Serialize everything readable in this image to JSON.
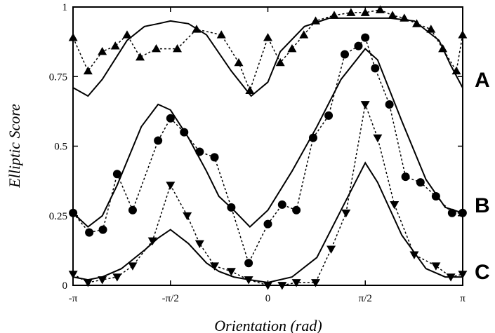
{
  "chart_data": {
    "type": "line",
    "xlabel": "Orientation (rad)",
    "ylabel": "Elliptic Score",
    "xlim": [
      -3.14159,
      3.14159
    ],
    "ylim": [
      0,
      1
    ],
    "x_ticks": [
      {
        "value": -3.14159,
        "label": "-π"
      },
      {
        "value": -1.5708,
        "label": "-π/2"
      },
      {
        "value": 0,
        "label": "0"
      },
      {
        "value": 1.5708,
        "label": "π/2"
      },
      {
        "value": 3.14159,
        "label": "π"
      }
    ],
    "y_ticks": [
      {
        "value": 0,
        "label": "0"
      },
      {
        "value": 0.25,
        "label": "0.25"
      },
      {
        "value": 0.5,
        "label": "0.5"
      },
      {
        "value": 0.75,
        "label": "0.75"
      },
      {
        "value": 1,
        "label": "1"
      }
    ],
    "panels": [
      {
        "label": "A",
        "y": 0.74
      },
      {
        "label": "B",
        "y": 0.29
      },
      {
        "label": "C",
        "y": 0.05
      }
    ],
    "grid": false,
    "legend": "none",
    "series": [
      {
        "marker": "triangle-up",
        "style": "dashed",
        "x": [
          -3.14,
          -2.9,
          -2.67,
          -2.46,
          -2.27,
          -2.06,
          -1.8,
          -1.46,
          -1.15,
          -0.75,
          -0.47,
          -0.29,
          0.0,
          0.2,
          0.39,
          0.58,
          0.77,
          1.07,
          1.34,
          1.57,
          1.81,
          2.01,
          2.2,
          2.4,
          2.63,
          2.82,
          3.04,
          3.14
        ],
        "y": [
          0.89,
          0.77,
          0.84,
          0.86,
          0.9,
          0.82,
          0.85,
          0.85,
          0.92,
          0.9,
          0.8,
          0.7,
          0.89,
          0.8,
          0.85,
          0.9,
          0.95,
          0.97,
          0.98,
          0.98,
          0.99,
          0.97,
          0.96,
          0.94,
          0.92,
          0.85,
          0.77,
          0.9
        ]
      },
      {
        "marker": "none",
        "style": "solid",
        "x": [
          -3.14,
          -2.9,
          -2.67,
          -2.27,
          -1.99,
          -1.77,
          -1.57,
          -1.28,
          -0.99,
          -0.59,
          -0.27,
          0.0,
          0.2,
          0.59,
          0.99,
          1.37,
          1.57,
          1.97,
          2.36,
          2.76,
          2.95,
          3.14
        ],
        "y": [
          0.71,
          0.68,
          0.74,
          0.88,
          0.93,
          0.94,
          0.95,
          0.94,
          0.9,
          0.77,
          0.68,
          0.73,
          0.84,
          0.93,
          0.96,
          0.96,
          0.96,
          0.96,
          0.95,
          0.88,
          0.79,
          0.71
        ]
      },
      {
        "marker": "circle",
        "style": "dashed",
        "x": [
          -3.14,
          -2.88,
          -2.66,
          -2.43,
          -2.18,
          -1.77,
          -1.57,
          -1.35,
          -1.1,
          -0.86,
          -0.59,
          -0.31,
          0.0,
          0.23,
          0.46,
          0.73,
          0.98,
          1.24,
          1.46,
          1.57,
          1.73,
          1.96,
          2.22,
          2.46,
          2.71,
          2.97,
          3.14
        ],
        "y": [
          0.26,
          0.19,
          0.2,
          0.4,
          0.27,
          0.52,
          0.6,
          0.55,
          0.48,
          0.46,
          0.28,
          0.08,
          0.22,
          0.29,
          0.27,
          0.53,
          0.61,
          0.83,
          0.86,
          0.89,
          0.78,
          0.65,
          0.39,
          0.37,
          0.32,
          0.26,
          0.26
        ]
      },
      {
        "marker": "none",
        "style": "solid",
        "x": [
          -3.14,
          -2.9,
          -2.67,
          -2.43,
          -2.04,
          -1.77,
          -1.57,
          -1.28,
          -0.99,
          -0.79,
          -0.55,
          -0.29,
          0.0,
          0.39,
          0.79,
          1.18,
          1.57,
          1.77,
          2.16,
          2.55,
          2.86,
          3.14
        ],
        "y": [
          0.26,
          0.21,
          0.25,
          0.36,
          0.57,
          0.65,
          0.63,
          0.53,
          0.41,
          0.32,
          0.27,
          0.21,
          0.27,
          0.41,
          0.57,
          0.74,
          0.85,
          0.81,
          0.59,
          0.38,
          0.28,
          0.26
        ]
      },
      {
        "marker": "triangle-down",
        "style": "dashed",
        "x": [
          -3.14,
          -2.9,
          -2.67,
          -2.43,
          -2.18,
          -1.86,
          -1.57,
          -1.3,
          -1.1,
          -0.86,
          -0.59,
          -0.31,
          0.0,
          0.23,
          0.46,
          0.77,
          1.02,
          1.26,
          1.57,
          1.77,
          2.04,
          2.36,
          2.71,
          2.95,
          3.14
        ],
        "y": [
          0.04,
          0.01,
          0.02,
          0.03,
          0.07,
          0.16,
          0.36,
          0.25,
          0.15,
          0.07,
          0.05,
          0.02,
          0.0,
          0.0,
          0.01,
          0.01,
          0.13,
          0.26,
          0.65,
          0.53,
          0.29,
          0.11,
          0.07,
          0.03,
          0.04
        ]
      },
      {
        "marker": "none",
        "style": "solid",
        "x": [
          -3.14,
          -2.9,
          -2.67,
          -2.36,
          -1.97,
          -1.77,
          -1.57,
          -1.28,
          -0.99,
          -0.79,
          -0.55,
          -0.29,
          0.0,
          0.39,
          0.79,
          1.18,
          1.57,
          1.77,
          2.16,
          2.55,
          2.86,
          3.14
        ],
        "y": [
          0.03,
          0.02,
          0.03,
          0.06,
          0.13,
          0.17,
          0.2,
          0.15,
          0.08,
          0.05,
          0.03,
          0.02,
          0.01,
          0.03,
          0.1,
          0.27,
          0.44,
          0.37,
          0.18,
          0.06,
          0.03,
          0.03
        ]
      }
    ]
  }
}
